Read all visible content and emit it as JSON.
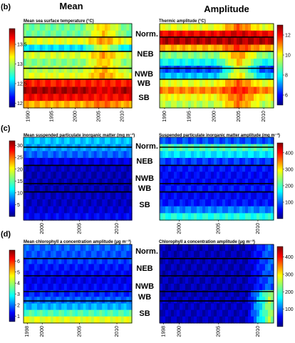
{
  "figure": {
    "column_titles": [
      "Mean",
      "Amplitude"
    ],
    "panel_letters": [
      "(b)",
      "(c)",
      "(d)"
    ]
  },
  "chart_data": [
    {
      "type": "heatmap",
      "panel": "(b)",
      "side": "left",
      "title": "Mean sea surface temperature (°C)",
      "x": [
        1990,
        1995,
        2000,
        2005,
        2010
      ],
      "x_range": [
        1989,
        2012
      ],
      "colorbar": {
        "ticks": [
          12,
          12.5,
          13,
          13.5
        ],
        "ticklabels": [
          "12",
          "12,5",
          "13",
          "13,5"
        ],
        "range": [
          11.9,
          13.9
        ]
      },
      "bands": [
        0.48,
        0.48,
        0.6,
        0.35,
        0.58,
        0.5,
        0.55,
        0.6,
        0.85,
        0.96,
        0.88,
        0.7
      ],
      "hot_spot": [
        2006,
        0.85
      ]
    },
    {
      "type": "heatmap",
      "panel": "(b)",
      "side": "right",
      "title": "Thermic amplitude (°C)",
      "x": [
        1990,
        1995,
        2000,
        2005,
        2010
      ],
      "x_range": [
        1989,
        2012
      ],
      "colorbar": {
        "ticks": [
          6,
          8,
          10,
          12
        ],
        "ticklabels": [
          "6",
          "8",
          "10",
          "12"
        ],
        "range": [
          5,
          13
        ]
      },
      "bands": [
        0.6,
        0.88,
        0.95,
        0.7,
        0.5,
        0.38,
        0.2,
        0.32,
        0.6,
        0.75,
        0.62,
        0.55
      ],
      "hot_spot": [
        2005,
        0.95
      ]
    },
    {
      "type": "heatmap",
      "panel": "(c)",
      "side": "left",
      "title": "Mean suspended particulate inorganic matter (mg m⁻³)",
      "x": [
        2000,
        2005,
        2010
      ],
      "x_range": [
        1997.5,
        2012
      ],
      "colorbar": {
        "ticks": [
          5,
          10,
          15,
          20,
          25,
          30
        ],
        "ticklabels": [
          "5",
          "10",
          "15",
          "20",
          "25",
          "30"
        ],
        "range": [
          0,
          32
        ]
      },
      "bands": [
        0.32,
        0.28,
        0.22,
        0.1,
        0.06,
        0.05,
        0.05,
        0.05,
        0.06,
        0.06,
        0.08,
        0.12
      ],
      "hot_spot": null
    },
    {
      "type": "heatmap",
      "panel": "(c)",
      "side": "right",
      "title": "Suspended particulate inorganic matter amplitude (mg m⁻³)",
      "x": [
        2000,
        2005,
        2010
      ],
      "x_range": [
        1997.5,
        2012
      ],
      "colorbar": {
        "ticks": [
          100,
          200,
          300,
          400
        ],
        "ticklabels": [
          "100",
          "200",
          "300",
          "400"
        ],
        "range": [
          0,
          460
        ]
      },
      "bands": [
        0.2,
        0.45,
        0.35,
        0.18,
        0.14,
        0.12,
        0.12,
        0.14,
        0.12,
        0.14,
        0.25,
        0.4
      ],
      "hot_spot": null
    },
    {
      "type": "heatmap",
      "panel": "(d)",
      "side": "left",
      "title": "Mean chlorophyll a concentration amplitude (μg m⁻³)",
      "x": [
        1998,
        2000,
        2005,
        2010
      ],
      "x_range": [
        1997.5,
        2012
      ],
      "colorbar": {
        "ticks": [
          1,
          2,
          3,
          4,
          5,
          6
        ],
        "ticklabels": [
          "1",
          "2",
          "3",
          "4",
          "5",
          "6"
        ],
        "range": [
          0.5,
          7
        ]
      },
      "bands": [
        0.22,
        0.2,
        0.18,
        0.14,
        0.12,
        0.1,
        0.12,
        0.16,
        0.22,
        0.3,
        0.45,
        0.6
      ],
      "hot_spot": null
    },
    {
      "type": "heatmap",
      "panel": "(d)",
      "side": "right",
      "title": "Chlorophyll a concentration amplitude (μg m⁻³)",
      "x": [
        1998,
        2000,
        2005,
        2010
      ],
      "x_range": [
        1997.5,
        2012
      ],
      "colorbar": {
        "ticks": [
          100,
          200,
          300,
          400
        ],
        "ticklabels": [
          "100",
          "200",
          "300",
          "400"
        ],
        "range": [
          0,
          460
        ]
      },
      "bands": [
        0.05,
        0.05,
        0.05,
        0.05,
        0.05,
        0.05,
        0.05,
        0.05,
        0.06,
        0.06,
        0.06,
        0.06
      ],
      "hot_spot": [
        2011.5,
        0.95
      ]
    }
  ],
  "region_labels": {
    "b": [
      "Norm.",
      "NEB",
      "NWB",
      "WB",
      "SB"
    ],
    "c": [
      "Norm.",
      "NEB",
      "NWB",
      "WB",
      "SB"
    ],
    "d": [
      "Norm.",
      "NEB",
      "NWB",
      "WB",
      "SB"
    ]
  }
}
